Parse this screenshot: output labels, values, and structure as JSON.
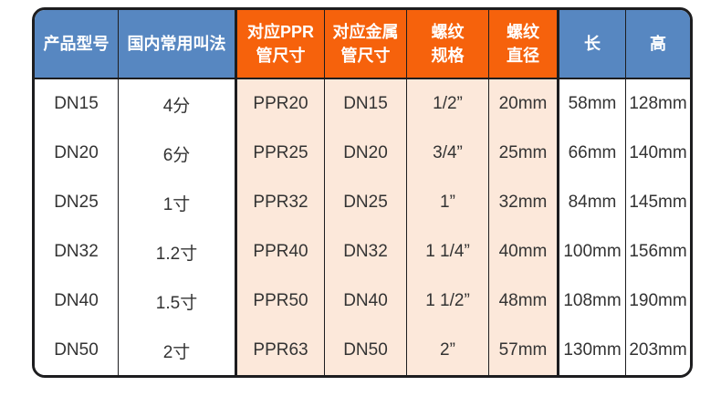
{
  "colors": {
    "header_blue": "#5787c1",
    "header_orange": "#f6620c",
    "body_peach": "#fce8da",
    "border": "#1d1d1f",
    "body_text": "#333333",
    "header_text": "#ffffff"
  },
  "table": {
    "columns": [
      {
        "label": "产品型号",
        "lines": [
          "产品型号"
        ],
        "header_color": "orange_no",
        "color": "blue",
        "body_bg": "white",
        "divider": "thin"
      },
      {
        "label": "国内常用叫法",
        "lines": [
          "国内常用叫法"
        ],
        "color": "blue",
        "body_bg": "white",
        "divider": "thick"
      },
      {
        "label": "对应PPR管尺寸",
        "lines": [
          "对应PPR",
          "管尺寸"
        ],
        "color": "orange",
        "body_bg": "peach",
        "divider": "thin"
      },
      {
        "label": "对应金属管尺寸",
        "lines": [
          "对应金属",
          "管尺寸"
        ],
        "color": "orange",
        "body_bg": "peach",
        "divider": "thin"
      },
      {
        "label": "螺纹规格",
        "lines": [
          "螺纹",
          "规格"
        ],
        "color": "orange",
        "body_bg": "peach",
        "divider": "thin"
      },
      {
        "label": "螺纹直径",
        "lines": [
          "螺纹",
          "直径"
        ],
        "color": "orange",
        "body_bg": "peach",
        "divider": "thick"
      },
      {
        "label": "长",
        "lines": [
          "长"
        ],
        "color": "blue",
        "body_bg": "white",
        "divider": "thin"
      },
      {
        "label": "高",
        "lines": [
          "高"
        ],
        "color": "blue",
        "body_bg": "white",
        "divider": "none"
      }
    ],
    "rows": [
      [
        "DN15",
        "4分",
        "PPR20",
        "DN15",
        "1/2”",
        "20mm",
        "58mm",
        "128mm"
      ],
      [
        "DN20",
        "6分",
        "PPR25",
        "DN20",
        "3/4”",
        "25mm",
        "66mm",
        "140mm"
      ],
      [
        "DN25",
        "1寸",
        "PPR32",
        "DN25",
        "1”",
        "32mm",
        "84mm",
        "145mm"
      ],
      [
        "DN32",
        "1.2寸",
        "PPR40",
        "DN32",
        "1 1/4”",
        "40mm",
        "100mm",
        "156mm"
      ],
      [
        "DN40",
        "1.5寸",
        "PPR50",
        "DN40",
        "1 1/2”",
        "48mm",
        "108mm",
        "190mm"
      ],
      [
        "DN50",
        "2寸",
        "PPR63",
        "DN50",
        "2”",
        "57mm",
        "130mm",
        "203mm"
      ]
    ]
  }
}
